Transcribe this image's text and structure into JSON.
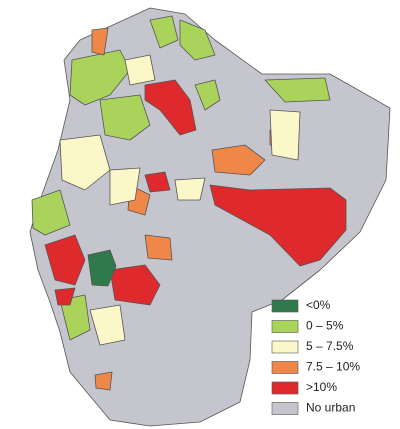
{
  "legend": {
    "items": [
      {
        "label": "<0%",
        "color": "#2f7a4a"
      },
      {
        "label": "0 – 5%",
        "color": "#a9d35b"
      },
      {
        "label": "5 – 7.5%",
        "color": "#fcf7c9"
      },
      {
        "label": "7.5 – 10%",
        "color": "#ef8748"
      },
      {
        "label": ">10%",
        "color": "#de2a2c"
      },
      {
        "label": "No urban",
        "color": "#c5c5cd"
      }
    ]
  }
}
